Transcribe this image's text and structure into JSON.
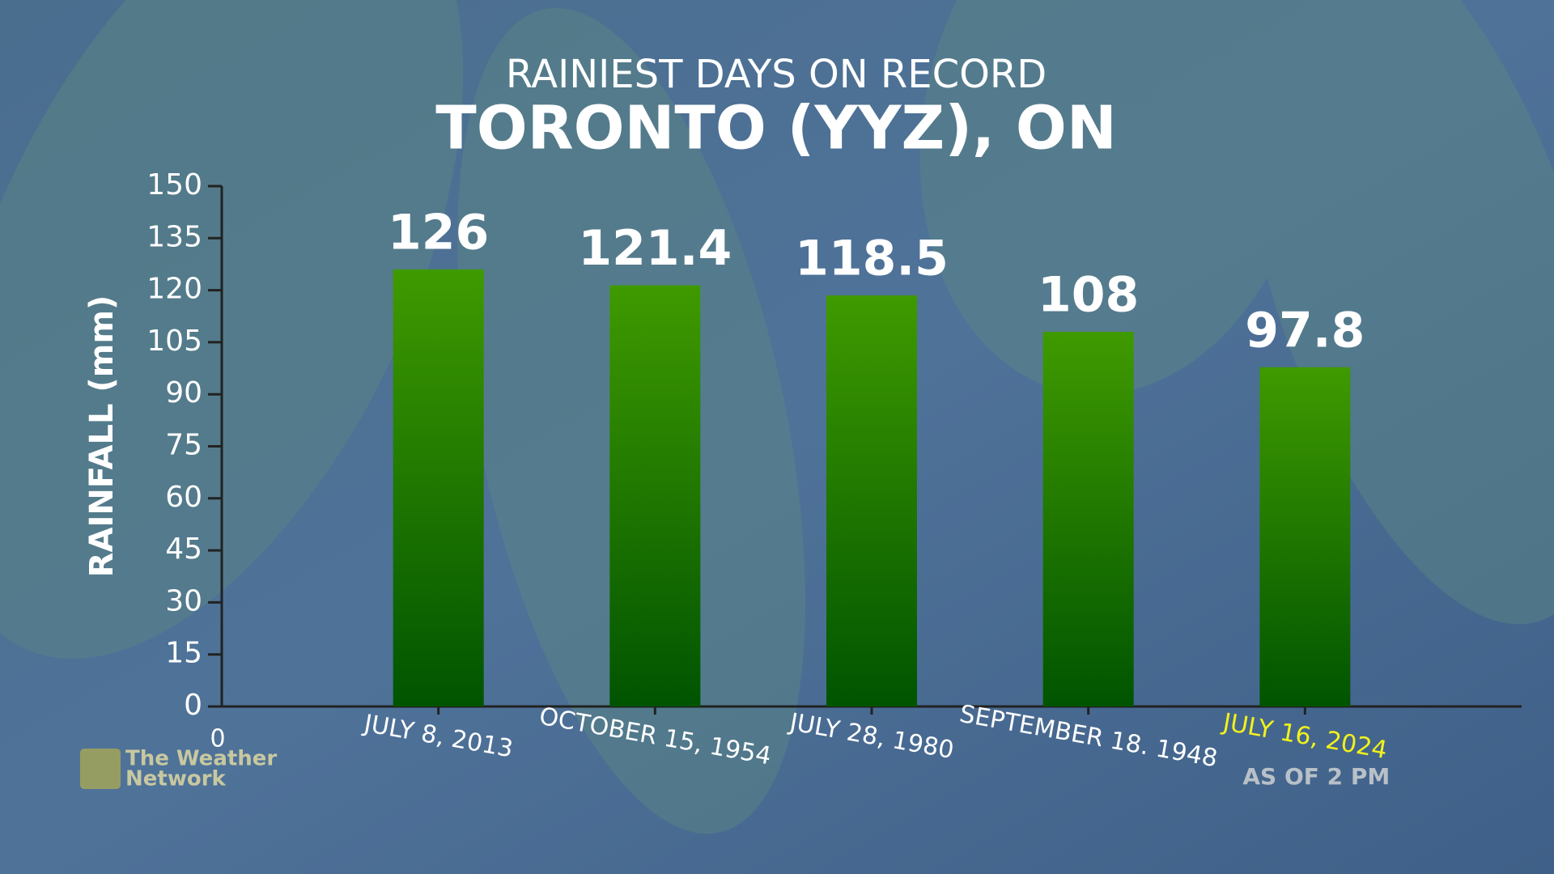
{
  "chart_data": {
    "type": "bar",
    "title": "RAINIEST DAYS ON RECORD",
    "subtitle": "TORONTO (YYZ), ON",
    "y_label": "RAINFALL (mm)",
    "categories": [
      "JULY 8, 2013",
      "OCTOBER 15, 1954",
      "JULY 28, 1980",
      "SEPTEMBER 18. 1948",
      "JULY 16, 2024"
    ],
    "values": [
      126,
      121.4,
      118.5,
      108,
      97.8
    ],
    "color": "#3f9a00",
    "highlight_color": "#f2f21a",
    "highlight_category": 4,
    "category_note": "AS OF 2 PM",
    "x_origin_label": "0",
    "ylim": [
      0,
      150
    ],
    "yticks": [
      0,
      15,
      30,
      45,
      60,
      75,
      90,
      105,
      120,
      135,
      150
    ],
    "source_logo": [
      "The Weather",
      "Network"
    ]
  }
}
